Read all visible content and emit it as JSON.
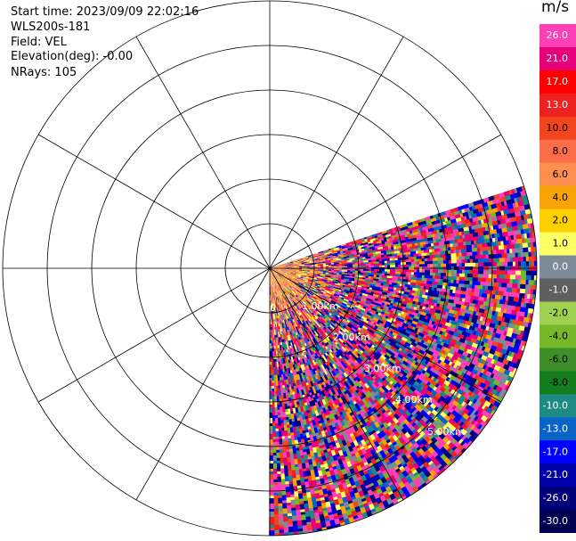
{
  "header": {
    "start_time": "Start time: 2023/09/09 22:02:16",
    "instrument": "WLS200s-181",
    "field": "Field: VEL",
    "elevation": "Elevation(deg): -0.00",
    "nrays": "NRays: 105"
  },
  "colorbar": {
    "unit": "m/s",
    "ticks": [
      "26.0",
      "21.0",
      "17.0",
      "13.0",
      "10.0",
      "8.0",
      "6.0",
      "4.0",
      "2.0",
      "1.0",
      "0.0",
      "-1.0",
      "-2.0",
      "-4.0",
      "-6.0",
      "-8.0",
      "-10.0",
      "-13.0",
      "-17.0",
      "-21.0",
      "-26.0",
      "-30.0"
    ],
    "colors": [
      "#ff3fb5",
      "#e8007a",
      "#ff0000",
      "#ee2020",
      "#f3451e",
      "#fc6d4a",
      "#fd8f4f",
      "#f9a406",
      "#fed000",
      "#ffff66",
      "#7c8b97",
      "#5f5f5f",
      "#a0d050",
      "#76b82a",
      "#3f8f28",
      "#147d1e",
      "#1e8a84",
      "#0a64c8",
      "#0000ff",
      "#0000a8",
      "#000078",
      "#000050"
    ]
  },
  "range_rings": {
    "labels": [
      "0",
      "1.00km",
      "2.00km",
      "3.00km",
      "4.00km",
      "5.00km"
    ]
  },
  "chart_data": {
    "type": "heatmap",
    "subtype": "polar PPI sector scan",
    "field": "VEL",
    "units": "m/s",
    "azimuth_range_deg": [
      72,
      180
    ],
    "range_km": [
      0,
      6.0
    ],
    "nrays": 105,
    "ring_spacing_km": 1.0,
    "spoke_spacing_deg": 30,
    "value_range": [
      -30.0,
      26.0
    ],
    "grid": true
  }
}
